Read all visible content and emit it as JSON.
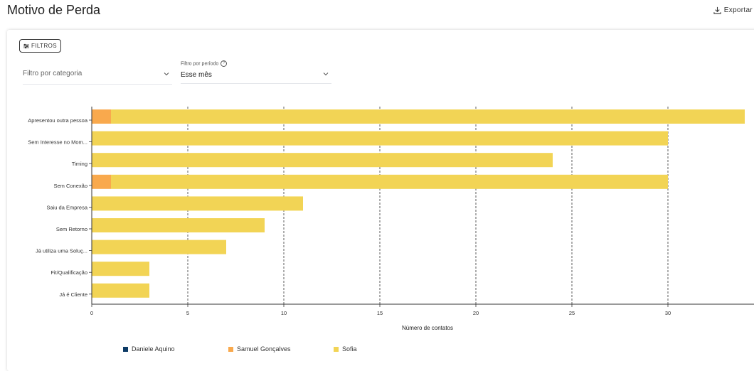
{
  "header": {
    "title": "Motivo de Perda",
    "export_label": "Exportar"
  },
  "filters": {
    "button_label": "FILTROS",
    "category_placeholder": "Filtro por categoria",
    "period_label": "Filtro por período",
    "period_value": "Esse mês"
  },
  "colors": {
    "sofia": "#f2d455",
    "samuel": "#f9a94d",
    "daniele": "#0d3b66"
  },
  "chart_data": {
    "type": "bar",
    "orientation": "horizontal",
    "stacked": true,
    "categories": [
      "Apresentou outra pessoa",
      "Sem Interesse no Mom...",
      "Timing",
      "Sem Conexão",
      "Saiu da Empresa",
      "Sem Retorno",
      "Já utiliza uma Soluç...",
      "Fit/Qualificação",
      "Já é Cliente"
    ],
    "series": [
      {
        "name": "Daniele Aquino",
        "values": [
          0,
          0,
          0,
          0,
          0,
          0,
          0,
          0,
          0
        ]
      },
      {
        "name": "Samuel Gonçalves",
        "values": [
          1,
          0,
          0,
          1,
          0,
          0,
          0,
          0,
          0
        ]
      },
      {
        "name": "Sofia",
        "values": [
          33,
          30,
          24,
          29,
          11,
          9,
          7,
          3,
          3
        ]
      }
    ],
    "xlabel": "Número de contatos",
    "ylabel": "",
    "xlim": [
      0,
      34
    ],
    "xticks": [
      0,
      5,
      10,
      15,
      20,
      25,
      30
    ],
    "grid": "vertical-dashed",
    "legend_position": "bottom"
  }
}
